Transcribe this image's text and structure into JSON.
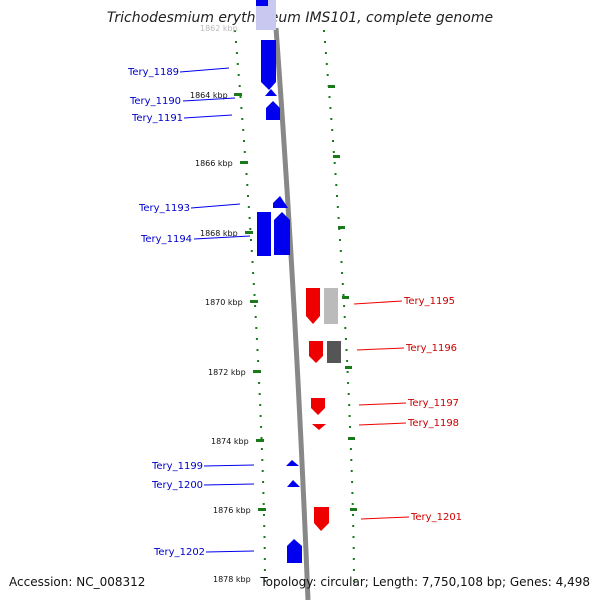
{
  "title": "Trichodesmium erythraeum IMS101, complete genome",
  "footer": {
    "accession": "Accession: NC_008312",
    "summary": "Topology: circular; Length: 7,750,108 bp; Genes: 4,498"
  },
  "scale": {
    "ticks": [
      "1864 kbp",
      "1866 kbp",
      "1868 kbp",
      "1870 kbp",
      "1872 kbp",
      "1874 kbp",
      "1876 kbp",
      "1878 kbp"
    ],
    "partial_top_label": "1862 kbp"
  },
  "colors": {
    "minus_strand": "#0000ee",
    "plus_strand": "#ee0000",
    "tick": "#1a7a1a",
    "backbone": "#888888",
    "gray_feature_light": "#bbbbbb",
    "gray_feature_dark": "#555555",
    "faded_feature": "#c8c8f0"
  },
  "genes_left": [
    "Tery_1189",
    "Tery_1190",
    "Tery_1191",
    "Tery_1193",
    "Tery_1194",
    "Tery_1199",
    "Tery_1200",
    "Tery_1202"
  ],
  "genes_right": [
    "Tery_1195",
    "Tery_1196",
    "Tery_1197",
    "Tery_1198",
    "Tery_1201"
  ]
}
